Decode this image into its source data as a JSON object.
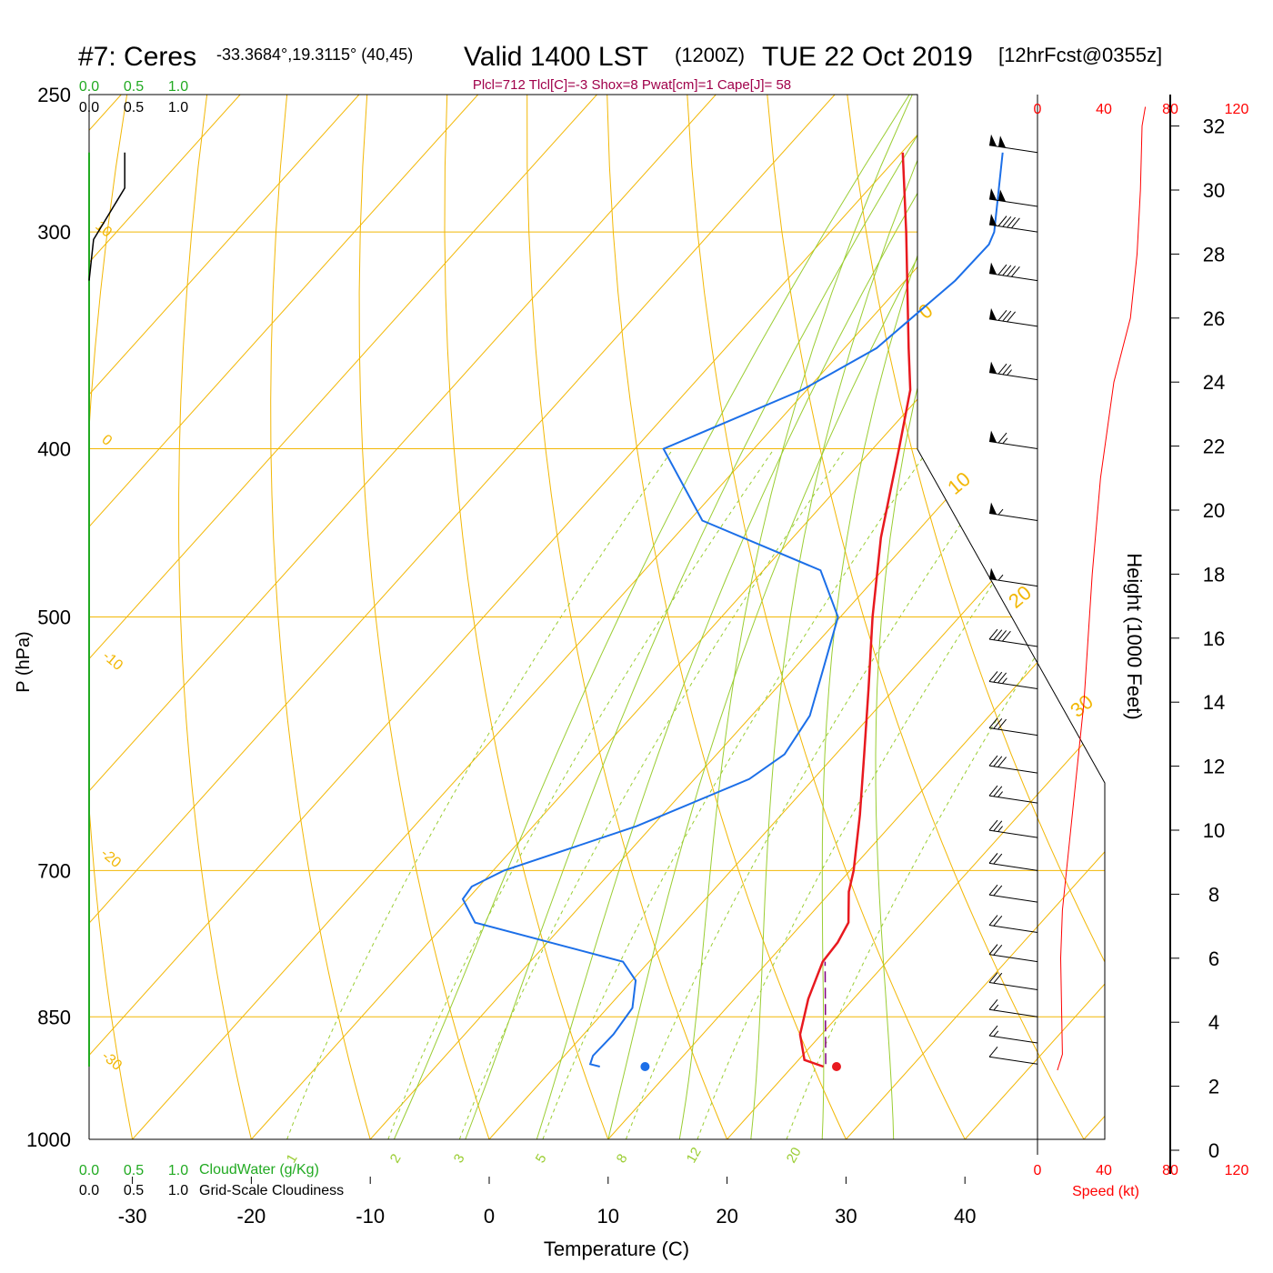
{
  "header": {
    "station": "#7: Ceres",
    "coords": "-33.3684°,19.3115° (40,45)",
    "valid": "Valid 1400 LST",
    "utc": "(1200Z)",
    "date": "TUE 22 Oct 2019",
    "forecast": "[12hrFcst@0355z]",
    "indices": "Plcl=712 Tlcl[C]=-3 Shox=8 Pwat[cm]=1 Cape[J]= 58"
  },
  "labels": {
    "y_axis": "P (hPa)",
    "x_axis": "Temperature (C)",
    "height_axis": "Height (1000 Feet)",
    "speed_axis": "Speed (kt)",
    "cloudwater": "CloudWater (g/Kg)",
    "cloudiness": "Grid-Scale Cloudiness"
  },
  "colors": {
    "temperature": "#e8191f",
    "dewpoint": "#1c6fe8",
    "isotherm": "#f2b705",
    "adiabat": "#f2b705",
    "moist_adiabat": "#9acd32",
    "mixing_ratio": "#9acd32",
    "cloudwater": "#22aa22",
    "speed": "#ff0000",
    "indices": "#a0004a"
  },
  "chart_data": {
    "type": "skew-t",
    "pressure_ticks": [
      "250",
      "300",
      "400",
      "500",
      "700",
      "850",
      "1000"
    ],
    "temperature_ticks": [
      "-30",
      "-20",
      "-10",
      "0",
      "10",
      "20",
      "30",
      "40"
    ],
    "height_ticks": [
      "0",
      "2",
      "4",
      "6",
      "8",
      "10",
      "12",
      "14",
      "16",
      "18",
      "20",
      "22",
      "24",
      "26",
      "28",
      "30",
      "32"
    ],
    "speed_ticks": [
      "0",
      "40",
      "80",
      "120"
    ],
    "cloud_ticks": [
      "0.0",
      "0.5",
      "1.0"
    ],
    "isotherm_labels": [
      "10",
      "0",
      "-10",
      "-20",
      "-30"
    ],
    "right_isotherm_labels": [
      "0",
      "10",
      "20",
      "30"
    ],
    "mixing_ratio_labels": [
      "1",
      "2",
      "3",
      "5",
      "8",
      "12",
      "20"
    ],
    "temperature_profile": [
      {
        "p": 908,
        "t": 22.6
      },
      {
        "p": 900,
        "t": 20.5
      },
      {
        "p": 870,
        "t": 18.2
      },
      {
        "p": 830,
        "t": 16.2
      },
      {
        "p": 790,
        "t": 14.6
      },
      {
        "p": 770,
        "t": 14.4
      },
      {
        "p": 750,
        "t": 13.8
      },
      {
        "p": 720,
        "t": 11.5
      },
      {
        "p": 700,
        "t": 10.3
      },
      {
        "p": 650,
        "t": 6.6
      },
      {
        "p": 600,
        "t": 2.4
      },
      {
        "p": 550,
        "t": -2.2
      },
      {
        "p": 500,
        "t": -7.3
      },
      {
        "p": 450,
        "t": -12.6
      },
      {
        "p": 400,
        "t": -17.8
      },
      {
        "p": 370,
        "t": -21.3
      },
      {
        "p": 350,
        "t": -24.6
      },
      {
        "p": 300,
        "t": -33.6
      },
      {
        "p": 270,
        "t": -39.9
      }
    ],
    "dewpoint_profile": [
      {
        "p": 908,
        "td": 3.8
      },
      {
        "p": 905,
        "td": 2.8
      },
      {
        "p": 895,
        "td": 2.4
      },
      {
        "p": 870,
        "td": 2.5
      },
      {
        "p": 840,
        "td": 2.1
      },
      {
        "p": 810,
        "td": 0.3
      },
      {
        "p": 790,
        "td": -2.2
      },
      {
        "p": 775,
        "td": -7.9
      },
      {
        "p": 750,
        "td": -17.6
      },
      {
        "p": 727,
        "td": -20.4
      },
      {
        "p": 715,
        "td": -20.6
      },
      {
        "p": 700,
        "td": -19.1
      },
      {
        "p": 660,
        "td": -11.3
      },
      {
        "p": 620,
        "td": -5.4
      },
      {
        "p": 600,
        "td": -4.3
      },
      {
        "p": 570,
        "td": -5.1
      },
      {
        "p": 540,
        "td": -7.2
      },
      {
        "p": 500,
        "td": -10.2
      },
      {
        "p": 470,
        "td": -15.2
      },
      {
        "p": 440,
        "td": -28.9
      },
      {
        "p": 400,
        "td": -37.6
      },
      {
        "p": 370,
        "td": -30.4
      },
      {
        "p": 350,
        "td": -27.3
      },
      {
        "p": 320,
        "td": -25.8
      },
      {
        "p": 305,
        "td": -25.7
      },
      {
        "p": 300,
        "td": -26.2
      },
      {
        "p": 270,
        "td": -31.5
      }
    ],
    "parcel_path": [
      {
        "p": 905,
        "t": 22.6
      },
      {
        "p": 790,
        "t": 14.8
      }
    ],
    "surface": {
      "p": 908,
      "t": 23.7,
      "td": 7.6
    },
    "cloudwater_profile": [
      {
        "p": 908,
        "v": 0.0
      },
      {
        "p": 270,
        "v": 0.0
      }
    ],
    "cloudiness_profile": [
      {
        "p": 320,
        "v": 0.0
      },
      {
        "p": 303,
        "v": 0.05
      },
      {
        "p": 283,
        "v": 0.4
      },
      {
        "p": 270,
        "v": 0.4
      }
    ],
    "wind_speed_profile": [
      {
        "h": 2.5,
        "kt": 12
      },
      {
        "h": 3,
        "kt": 15
      },
      {
        "h": 6,
        "kt": 14
      },
      {
        "h": 7.5,
        "kt": 15
      },
      {
        "h": 10,
        "kt": 20
      },
      {
        "h": 14,
        "kt": 28
      },
      {
        "h": 18,
        "kt": 33
      },
      {
        "h": 21,
        "kt": 38
      },
      {
        "h": 24,
        "kt": 46
      },
      {
        "h": 26,
        "kt": 56
      },
      {
        "h": 28,
        "kt": 60
      },
      {
        "h": 30,
        "kt": 62
      },
      {
        "h": 32,
        "kt": 63
      },
      {
        "h": 32.6,
        "kt": 65
      }
    ],
    "barbs": [
      {
        "p": 270,
        "kt": 100
      },
      {
        "p": 290,
        "kt": 100
      },
      {
        "p": 300,
        "kt": 90
      },
      {
        "p": 320,
        "kt": 90
      },
      {
        "p": 340,
        "kt": 80
      },
      {
        "p": 365,
        "kt": 75
      },
      {
        "p": 400,
        "kt": 65
      },
      {
        "p": 440,
        "kt": 55
      },
      {
        "p": 480,
        "kt": 55
      },
      {
        "p": 520,
        "kt": 40
      },
      {
        "p": 550,
        "kt": 35
      },
      {
        "p": 585,
        "kt": 30
      },
      {
        "p": 615,
        "kt": 30
      },
      {
        "p": 640,
        "kt": 25
      },
      {
        "p": 670,
        "kt": 25
      },
      {
        "p": 700,
        "kt": 20
      },
      {
        "p": 730,
        "kt": 20
      },
      {
        "p": 760,
        "kt": 20
      },
      {
        "p": 790,
        "kt": 20
      },
      {
        "p": 820,
        "kt": 20
      },
      {
        "p": 850,
        "kt": 15
      },
      {
        "p": 880,
        "kt": 15
      },
      {
        "p": 905,
        "kt": 10
      }
    ]
  }
}
